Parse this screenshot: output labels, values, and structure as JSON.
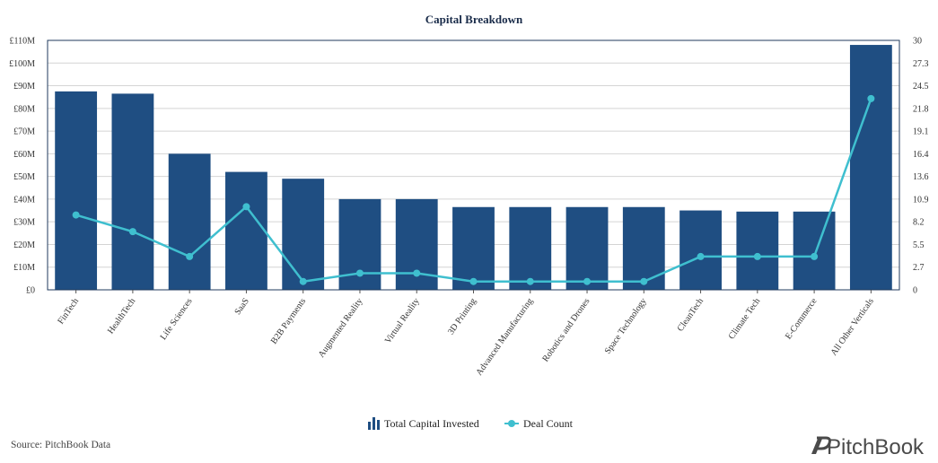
{
  "chart_data": {
    "type": "bar",
    "title": "Capital Breakdown",
    "categories": [
      "FinTech",
      "HealthTech",
      "Life Sciences",
      "SaaS",
      "B2B Payments",
      "Augmented Reality",
      "Virtual Reality",
      "3D Printing",
      "Advanced Manufacturing",
      "Robotics and Drones",
      "Space Technology",
      "CleanTech",
      "Climate Tech",
      "E-Commerce",
      "All Other Verticals"
    ],
    "series": [
      {
        "name": "Total Capital Invested",
        "type": "bar",
        "axis": "left",
        "color": "#1f4e82",
        "values": [
          87.5,
          86.5,
          60,
          52,
          49,
          40,
          40,
          36.5,
          36.5,
          36.5,
          36.5,
          35,
          34.5,
          34.5,
          108
        ]
      },
      {
        "name": "Deal Count",
        "type": "line",
        "axis": "right",
        "color": "#3fbfcf",
        "values": [
          9,
          7,
          4,
          10,
          1,
          2,
          2,
          1,
          1,
          1,
          1,
          4,
          4,
          4,
          23
        ]
      }
    ],
    "y_left": {
      "ticks": [
        "£0",
        "£10M",
        "£20M",
        "£30M",
        "£40M",
        "£50M",
        "£60M",
        "£70M",
        "£80M",
        "£90M",
        "£100M",
        "£110M"
      ],
      "ylim": [
        0,
        110
      ]
    },
    "y_right": {
      "ticks": [
        "0",
        "2.7",
        "5.5",
        "8.2",
        "10.9",
        "13.6",
        "16.4",
        "19.1",
        "21.8",
        "24.5",
        "27.3",
        "30"
      ],
      "ylim": [
        0,
        30
      ]
    },
    "grid": true,
    "legend_position": "bottom-center"
  },
  "legend": {
    "bar_label": "Total Capital Invested",
    "line_label": "Deal Count"
  },
  "footer": {
    "source": "Source: PitchBook Data",
    "brand": "PitchBook",
    "brand_icon": "pitchbook-logo-icon"
  }
}
